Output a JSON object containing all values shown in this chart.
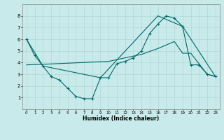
{
  "title": "",
  "xlabel": "Humidex (Indice chaleur)",
  "background_color": "#c8eaea",
  "grid_color": "#b0d8d8",
  "line_color": "#006868",
  "xlim": [
    -0.5,
    23.5
  ],
  "ylim": [
    0,
    9
  ],
  "xticks": [
    0,
    1,
    2,
    3,
    4,
    5,
    6,
    7,
    8,
    9,
    10,
    11,
    12,
    13,
    14,
    15,
    16,
    17,
    18,
    19,
    20,
    21,
    22,
    23
  ],
  "yticks": [
    1,
    2,
    3,
    4,
    5,
    6,
    7,
    8
  ],
  "line1_x": [
    0,
    1,
    2,
    3,
    4,
    5,
    6,
    7,
    8,
    9,
    10,
    11,
    12,
    13,
    14,
    15,
    16,
    17,
    18,
    19,
    20,
    21,
    22,
    23
  ],
  "line1_y": [
    6.0,
    4.6,
    3.7,
    2.8,
    2.5,
    1.8,
    1.1,
    0.9,
    0.9,
    2.7,
    2.7,
    3.9,
    4.1,
    4.4,
    5.0,
    6.5,
    7.3,
    8.0,
    7.8,
    7.1,
    3.8,
    3.8,
    3.0,
    2.8
  ],
  "line2_x": [
    0,
    2,
    9,
    16,
    19,
    23
  ],
  "line2_y": [
    6.0,
    3.7,
    2.7,
    8.0,
    7.1,
    2.8
  ],
  "line3_x": [
    0,
    2,
    10,
    14,
    16,
    18,
    19,
    20,
    22,
    23
  ],
  "line3_y": [
    3.8,
    3.85,
    4.1,
    4.7,
    5.2,
    5.8,
    4.8,
    4.8,
    3.0,
    2.8
  ]
}
